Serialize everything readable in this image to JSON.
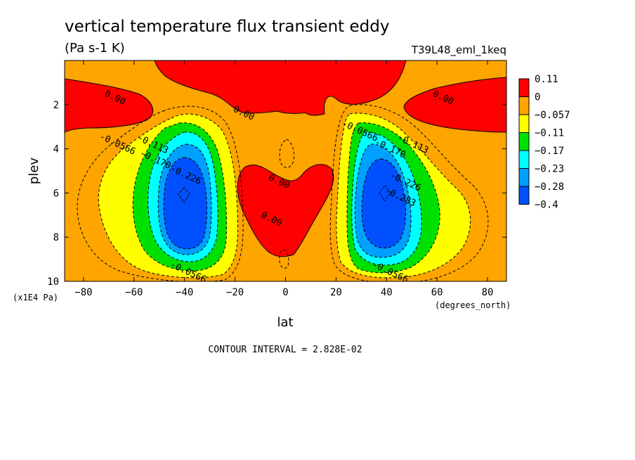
{
  "chart_data": {
    "type": "heatmap",
    "title": "vertical temperature flux transient eddy",
    "subtitle": "(Pa s-1 K)",
    "run_label": "T39L48_eml_1keq",
    "xlabel": "lat",
    "xunits": "(degrees_north)",
    "ylabel": "plev",
    "yunits": "(x1E4 Pa)",
    "xlim": [
      -87.5,
      87.5
    ],
    "ylim": [
      10,
      0
    ],
    "x_ticks": [
      -80,
      -60,
      -40,
      -20,
      0,
      20,
      40,
      60,
      80
    ],
    "y_ticks": [
      2,
      4,
      6,
      8,
      10
    ],
    "contour_interval_text": "CONTOUR INTERVAL = 2.828E-02",
    "colorbar": [
      {
        "label": "0.11",
        "color": "#ff0000"
      },
      {
        "label": "0",
        "color": "#ffa500"
      },
      {
        "label": "−0.057",
        "color": "#ffff00"
      },
      {
        "label": "−0.11",
        "color": "#00e000"
      },
      {
        "label": "−0.17",
        "color": "#00ffff"
      },
      {
        "label": "−0.23",
        "color": "#00a0ff"
      },
      {
        "label": "−0.28",
        "color": "#0050ff"
      },
      {
        "label": "−0.4",
        "color": ""
      }
    ],
    "contour_labels": [
      {
        "text": "0.00",
        "lat": -68,
        "plev": 1.8
      },
      {
        "text": "0.00",
        "lat": -17,
        "plev": 2.5
      },
      {
        "text": "0.00",
        "lat": 62,
        "plev": 1.8
      },
      {
        "text": "0.00",
        "lat": -3,
        "plev": 5.6
      },
      {
        "text": "0.00",
        "lat": -6,
        "plev": 7.3
      },
      {
        "text": "-0.0566",
        "lat": -67,
        "plev": 3.9
      },
      {
        "text": "-0.113",
        "lat": -53,
        "plev": 3.9
      },
      {
        "text": "-0.170",
        "lat": -52,
        "plev": 4.6
      },
      {
        "text": "-0.226",
        "lat": -40,
        "plev": 5.3
      },
      {
        "text": "-0.0566",
        "lat": -39,
        "plev": 9.7
      },
      {
        "text": "-0.0566",
        "lat": 29,
        "plev": 3.3
      },
      {
        "text": "-0.170",
        "lat": 41,
        "plev": 4.1
      },
      {
        "text": "-0.113",
        "lat": 50,
        "plev": 3.9
      },
      {
        "text": "-0.226",
        "lat": 47,
        "plev": 5.6
      },
      {
        "text": "-0.283",
        "lat": 45,
        "plev": 6.3
      },
      {
        "text": "-0.0566",
        "lat": 41,
        "plev": 9.7
      }
    ]
  }
}
